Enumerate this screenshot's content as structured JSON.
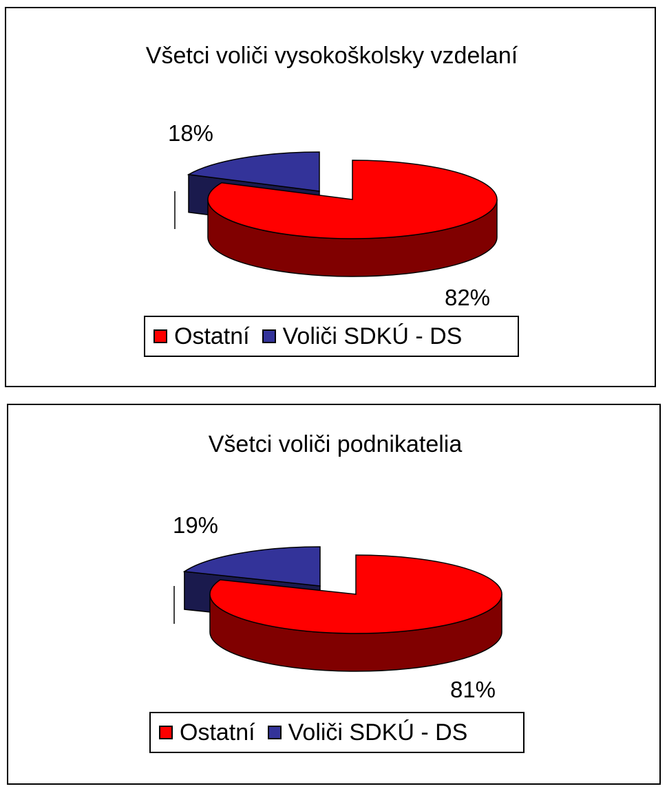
{
  "colors": {
    "ostatni_top": "#FF0000",
    "ostatni_side": "#800000",
    "volici_top": "#333399",
    "volici_side": "#1A1A4D",
    "border": "#000000",
    "background": "#FFFFFF"
  },
  "chart_data": [
    {
      "type": "pie",
      "style": "3d-exploded",
      "title": "Všetci voliči vysokoškolsky vzdelaní",
      "legend_position": "bottom",
      "slices": [
        {
          "name": "Ostatní",
          "value": 82,
          "label": "82%",
          "color": "#FF0000"
        },
        {
          "name": "Voliči SDKÚ - DS",
          "value": 18,
          "label": "18%",
          "color": "#333399"
        }
      ]
    },
    {
      "type": "pie",
      "style": "3d-exploded",
      "title": "Všetci voliči podnikatelia",
      "legend_position": "bottom",
      "slices": [
        {
          "name": "Ostatní",
          "value": 81,
          "label": "81%",
          "color": "#FF0000"
        },
        {
          "name": "Voliči SDKÚ - DS",
          "value": 19,
          "label": "19%",
          "color": "#333399"
        }
      ]
    }
  ]
}
